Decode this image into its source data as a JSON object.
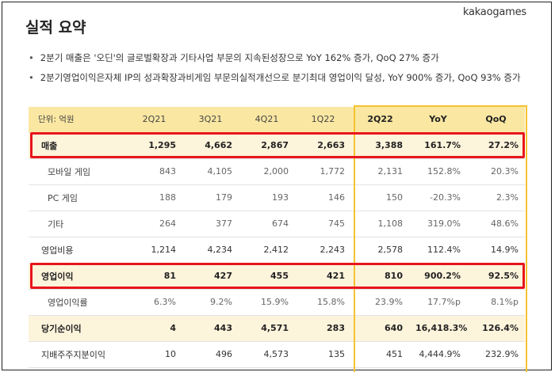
{
  "header": {
    "title": "실적 요약",
    "logo_prefix": "kakao",
    "logo_suffix": "games"
  },
  "bullets": [
    "2분기 매출은 '오딘'의 글로벌확장과 기타사업 부문의 지속된성장으로 YoY 162% 증가, QoQ 27% 증가",
    "2분기영업이익은자체 IP의 성과확장과비게임 부문의실적개선으로 분기최대 영업이익 달성, YoY 900% 증가, QoQ 93% 증가"
  ],
  "table": {
    "unit_label": "단위: 억원",
    "columns": [
      "2Q21",
      "3Q21",
      "4Q21",
      "1Q22",
      "2Q22",
      "YoY",
      "QoQ"
    ],
    "rows": [
      {
        "label": "매출",
        "values": [
          "1,295",
          "4,662",
          "2,867",
          "2,663",
          "3,388",
          "161.7%",
          "27.2%"
        ]
      },
      {
        "label": "모바일 게임",
        "values": [
          "843",
          "4,105",
          "2,000",
          "1,772",
          "2,131",
          "152.8%",
          "20.3%"
        ]
      },
      {
        "label": "PC 게임",
        "values": [
          "188",
          "179",
          "193",
          "146",
          "150",
          "-20.3%",
          "2.3%"
        ]
      },
      {
        "label": "기타",
        "values": [
          "264",
          "377",
          "674",
          "745",
          "1,108",
          "319.0%",
          "48.6%"
        ]
      },
      {
        "label": "영업비용",
        "values": [
          "1,214",
          "4,234",
          "2,412",
          "2,243",
          "2,578",
          "112.4%",
          "14.9%"
        ]
      },
      {
        "label": "영업이익",
        "values": [
          "81",
          "427",
          "455",
          "421",
          "810",
          "900.2%",
          "92.5%"
        ]
      },
      {
        "label": "영업이익률",
        "values": [
          "6.3%",
          "9.2%",
          "15.9%",
          "15.8%",
          "23.9%",
          "17.7%p",
          "8.1%p"
        ]
      },
      {
        "label": "당기순이익",
        "values": [
          "4",
          "443",
          "4,571",
          "283",
          "640",
          "16,418.3%",
          "126.4%"
        ]
      },
      {
        "label": "지배주주지분이익",
        "values": [
          "10",
          "496",
          "4,573",
          "135",
          "451",
          "4,444.9%",
          "232.9%"
        ]
      }
    ]
  },
  "colors": {
    "header_fill": "#fae7a2",
    "highlight_row_fill": "#fdf4dc",
    "highlight_column_border": "#f6c230",
    "red_highlight_border": "#e8151c",
    "logo_accent": "#ffbf00"
  }
}
